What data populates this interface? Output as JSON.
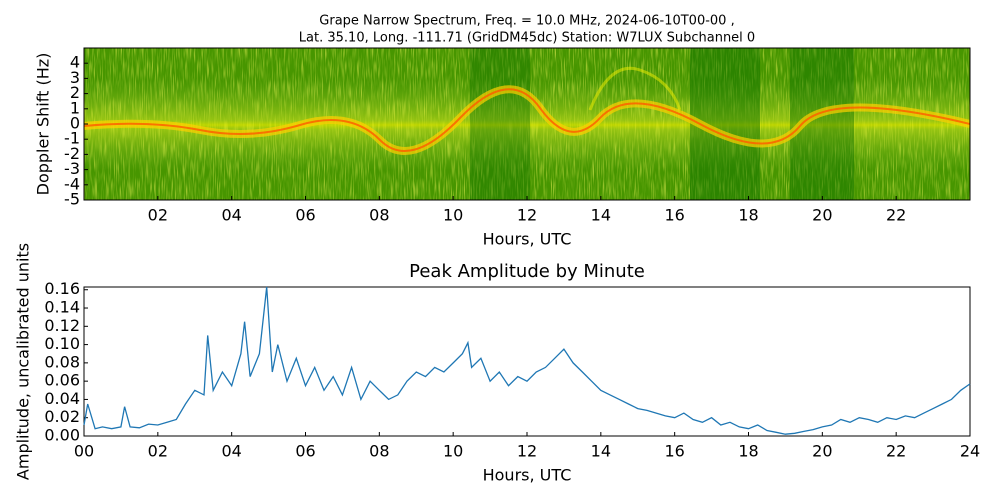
{
  "chart_data": [
    {
      "type": "spectrogram",
      "title": "Grape Narrow Spectrum, Freq. = 10.0 MHz, 2024-06-10T00-00 ,",
      "subtitle": "Lat.  35.10, Long. -111.71 (GridDM45dc) Station: W7LUX Subchannel 0",
      "y_label": "Doppler Shift (Hz)",
      "x_label": "Hours, UTC",
      "xlim": [
        0,
        24
      ],
      "xticks": [
        {
          "value": 2,
          "label": "02"
        },
        {
          "value": 4,
          "label": "04"
        },
        {
          "value": 6,
          "label": "06"
        },
        {
          "value": 8,
          "label": "08"
        },
        {
          "value": 10,
          "label": "10"
        },
        {
          "value": 12,
          "label": "12"
        },
        {
          "value": 14,
          "label": "14"
        },
        {
          "value": 16,
          "label": "16"
        },
        {
          "value": 18,
          "label": "18"
        },
        {
          "value": 20,
          "label": "20"
        },
        {
          "value": 22,
          "label": "22"
        }
      ],
      "ylim": [
        -5,
        5
      ],
      "yticks": [
        -5,
        -4,
        -3,
        -2,
        -1,
        0,
        1,
        2,
        3,
        4
      ]
    },
    {
      "type": "line",
      "title": "Peak Amplitude by Minute",
      "y_label": "Amplitude, uncalibrated units",
      "x_label": "Hours, UTC",
      "xlim": [
        0,
        24
      ],
      "xticks": [
        {
          "value": 0,
          "label": "00"
        },
        {
          "value": 2,
          "label": "02"
        },
        {
          "value": 4,
          "label": "04"
        },
        {
          "value": 6,
          "label": "06"
        },
        {
          "value": 8,
          "label": "08"
        },
        {
          "value": 10,
          "label": "10"
        },
        {
          "value": 12,
          "label": "12"
        },
        {
          "value": 14,
          "label": "14"
        },
        {
          "value": 16,
          "label": "16"
        },
        {
          "value": 18,
          "label": "18"
        },
        {
          "value": 20,
          "label": "20"
        },
        {
          "value": 22,
          "label": "22"
        },
        {
          "value": 24,
          "label": "24"
        }
      ],
      "ylim": [
        0,
        0.163
      ],
      "yticks": [
        {
          "value": 0,
          "label": "0.00"
        },
        {
          "value": 0.02,
          "label": "0.02"
        },
        {
          "value": 0.04,
          "label": "0.04"
        },
        {
          "value": 0.06,
          "label": "0.06"
        },
        {
          "value": 0.08,
          "label": "0.08"
        },
        {
          "value": 0.1,
          "label": "0.10"
        },
        {
          "value": 0.12,
          "label": "0.12"
        },
        {
          "value": 0.14,
          "label": "0.14"
        },
        {
          "value": 0.16,
          "label": "0.16"
        }
      ],
      "color": "#1f77b4",
      "x": [
        0,
        0.1,
        0.3,
        0.5,
        0.75,
        1,
        1.1,
        1.25,
        1.5,
        1.75,
        2,
        2.25,
        2.5,
        2.75,
        3,
        3.25,
        3.35,
        3.5,
        3.75,
        4,
        4.25,
        4.35,
        4.5,
        4.75,
        4.95,
        5.1,
        5.25,
        5.5,
        5.75,
        6,
        6.25,
        6.5,
        6.75,
        7,
        7.25,
        7.5,
        7.75,
        8,
        8.25,
        8.5,
        8.75,
        9,
        9.25,
        9.5,
        9.75,
        10,
        10.25,
        10.4,
        10.5,
        10.75,
        11,
        11.25,
        11.5,
        11.75,
        12,
        12.25,
        12.5,
        12.75,
        13,
        13.25,
        13.5,
        13.75,
        14,
        14.25,
        14.5,
        14.75,
        15,
        15.25,
        15.5,
        15.75,
        16,
        16.25,
        16.5,
        16.75,
        17,
        17.25,
        17.5,
        17.75,
        18,
        18.25,
        18.5,
        18.75,
        19,
        19.25,
        19.5,
        19.75,
        20,
        20.25,
        20.5,
        20.75,
        21,
        21.25,
        21.5,
        21.75,
        22,
        22.25,
        22.5,
        22.75,
        23,
        23.25,
        23.5,
        23.75,
        24
      ],
      "values": [
        0.012,
        0.035,
        0.008,
        0.01,
        0.008,
        0.01,
        0.032,
        0.01,
        0.009,
        0.013,
        0.012,
        0.015,
        0.018,
        0.035,
        0.05,
        0.045,
        0.11,
        0.05,
        0.07,
        0.055,
        0.09,
        0.125,
        0.065,
        0.09,
        0.163,
        0.07,
        0.1,
        0.06,
        0.085,
        0.055,
        0.075,
        0.05,
        0.065,
        0.045,
        0.075,
        0.04,
        0.06,
        0.05,
        0.04,
        0.045,
        0.06,
        0.07,
        0.065,
        0.075,
        0.07,
        0.08,
        0.09,
        0.102,
        0.075,
        0.085,
        0.06,
        0.07,
        0.055,
        0.065,
        0.06,
        0.07,
        0.075,
        0.085,
        0.095,
        0.08,
        0.07,
        0.06,
        0.05,
        0.045,
        0.04,
        0.035,
        0.03,
        0.028,
        0.025,
        0.022,
        0.02,
        0.025,
        0.018,
        0.015,
        0.02,
        0.012,
        0.015,
        0.01,
        0.008,
        0.012,
        0.006,
        0.004,
        0.002,
        0.003,
        0.005,
        0.007,
        0.01,
        0.012,
        0.018,
        0.015,
        0.02,
        0.018,
        0.015,
        0.02,
        0.018,
        0.022,
        0.02,
        0.025,
        0.03,
        0.035,
        0.04,
        0.05,
        0.057
      ]
    }
  ]
}
